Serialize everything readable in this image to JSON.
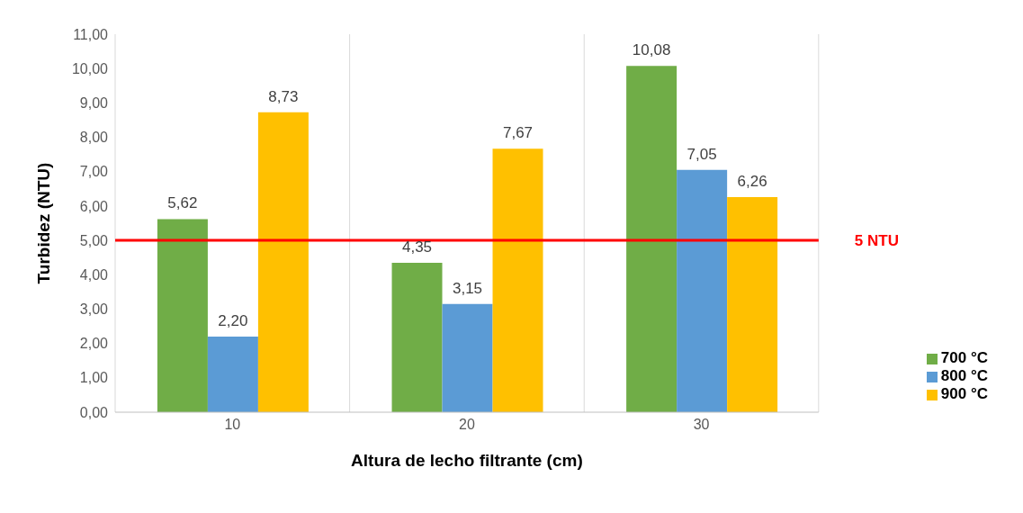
{
  "chart_data": {
    "type": "bar",
    "xlabel": "Altura de lecho filtrante (cm)",
    "ylabel": "Turbidez (NTU)",
    "categories": [
      "10",
      "20",
      "30"
    ],
    "series": [
      {
        "name": "700 °C",
        "color": "#70ad47",
        "values": [
          5.62,
          4.35,
          10.08
        ],
        "value_labels": [
          "5,62",
          "4,35",
          "10,08"
        ]
      },
      {
        "name": "800 °C",
        "color": "#5b9bd5",
        "values": [
          2.2,
          3.15,
          7.05
        ],
        "value_labels": [
          "2,20",
          "3,15",
          "7,05"
        ]
      },
      {
        "name": "900 °C",
        "color": "#ffc000",
        "values": [
          8.73,
          7.67,
          6.26
        ],
        "value_labels": [
          "8,73",
          "7,67",
          "6,26"
        ]
      }
    ],
    "ylim": [
      0,
      11
    ],
    "yticks": [
      {
        "value": 0,
        "label": "0,00"
      },
      {
        "value": 1,
        "label": "1,00"
      },
      {
        "value": 2,
        "label": "2,00"
      },
      {
        "value": 3,
        "label": "3,00"
      },
      {
        "value": 4,
        "label": "4,00"
      },
      {
        "value": 5,
        "label": "5,00"
      },
      {
        "value": 6,
        "label": "6,00"
      },
      {
        "value": 7,
        "label": "7,00"
      },
      {
        "value": 8,
        "label": "8,00"
      },
      {
        "value": 9,
        "label": "9,00"
      },
      {
        "value": 10,
        "label": "10,00"
      },
      {
        "value": 11,
        "label": "11,00"
      }
    ],
    "ref_lines": [
      {
        "axis": "y",
        "value": 5,
        "label": "5 NTU",
        "color": "#ff0000"
      }
    ],
    "grid": "x",
    "legend": "bottom right"
  }
}
